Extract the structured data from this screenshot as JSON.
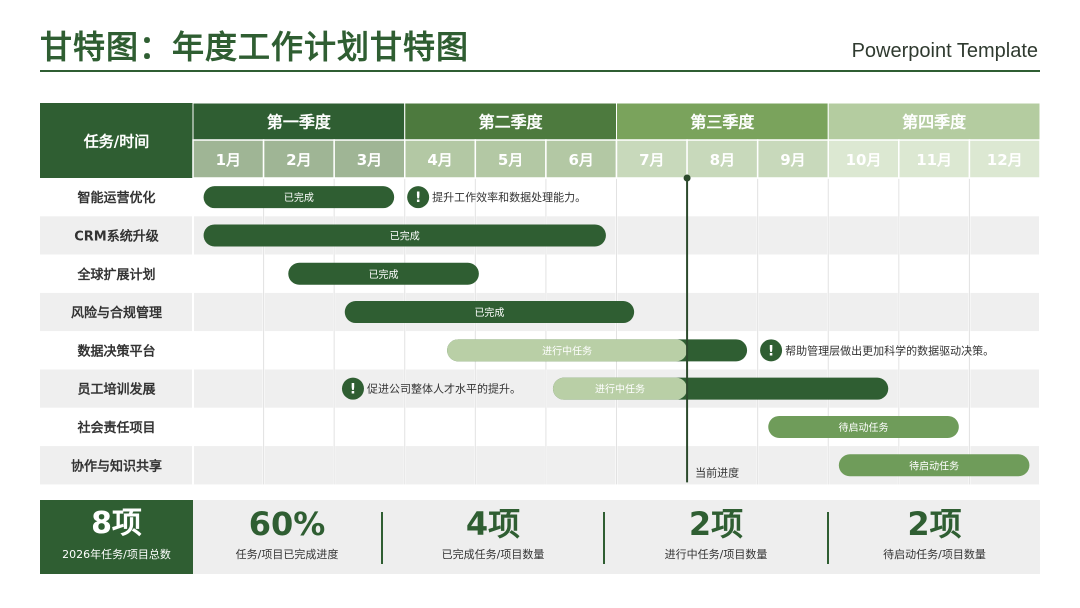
{
  "title": "甘特图：年度工作计划甘特图",
  "subtitle": "Powerpoint Template",
  "colors": {
    "dark_green": "#2f5e32",
    "mid_green": "#6f9c5a",
    "light_green": "#b9cfa6",
    "q1": "#2f5e32",
    "q2": "#4d7a3e",
    "q3": "#7aa35c",
    "q4": "#b4cca0"
  },
  "chart_data": {
    "type": "gantt",
    "corner_label": "任务/时间",
    "quarters": [
      "第一季度",
      "第二季度",
      "第三季度",
      "第四季度"
    ],
    "months": [
      "1月",
      "2月",
      "3月",
      "4月",
      "5月",
      "6月",
      "7月",
      "8月",
      "9月",
      "10月",
      "11月",
      "12月"
    ],
    "current_progress": {
      "month": 7.0,
      "label": "当前进度"
    },
    "tasks": [
      {
        "name": "智能运营优化",
        "start": 0.15,
        "end": 2.85,
        "status": "已完成",
        "style": "done",
        "note": "提升工作效率和数据处理能力。",
        "note_side": "right"
      },
      {
        "name": "CRM系统升级",
        "start": 0.15,
        "end": 5.85,
        "status": "已完成",
        "style": "done"
      },
      {
        "name": "全球扩展计划",
        "start": 1.35,
        "end": 4.05,
        "status": "已完成",
        "style": "done"
      },
      {
        "name": "风险与合规管理",
        "start": 2.15,
        "end": 6.25,
        "status": "已完成",
        "style": "done"
      },
      {
        "name": "数据决策平台",
        "start": 3.6,
        "end": 7.85,
        "status": "进行中任务",
        "style": "progress",
        "note": "帮助管理层做出更加科学的数据驱动决策。",
        "note_side": "right"
      },
      {
        "name": "员工培训发展",
        "start": 5.1,
        "end": 9.85,
        "status": "进行中任务",
        "style": "progress",
        "note": "促进公司整体人才水平的提升。",
        "note_side": "left"
      },
      {
        "name": "社会责任项目",
        "start": 8.15,
        "end": 10.85,
        "status": "待启动任务",
        "style": "pending"
      },
      {
        "name": "协作与知识共享",
        "start": 9.15,
        "end": 11.85,
        "status": "待启动任务",
        "style": "pending"
      }
    ]
  },
  "stats": {
    "total": {
      "value": "8项",
      "label": "2026年任务/项目总数"
    },
    "items": [
      {
        "value": "60%",
        "label": "任务/项目已完成进度"
      },
      {
        "value": "4项",
        "label": "已完成任务/项目数量"
      },
      {
        "value": "2项",
        "label": "进行中任务/项目数量"
      },
      {
        "value": "2项",
        "label": "待启动任务/项目数量"
      }
    ]
  }
}
